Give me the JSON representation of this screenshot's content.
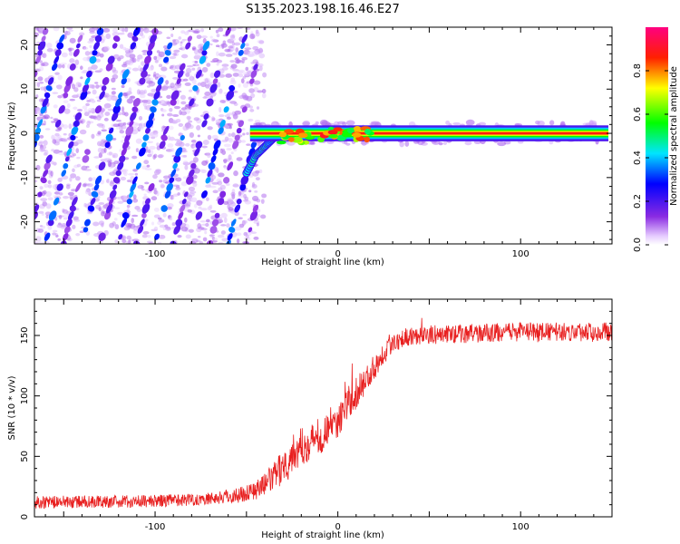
{
  "title": "S135.2023.198.16.46.E27",
  "chart_data": [
    {
      "type": "heatmap",
      "title": "S135.2023.198.16.46.E27",
      "xlabel": "Height of straight line (km)",
      "ylabel": "Frequency (Hz)",
      "xlim": [
        -166,
        150
      ],
      "ylim": [
        -25,
        24
      ],
      "x_ticks": [
        -100,
        0,
        100
      ],
      "y_ticks": [
        -20,
        -10,
        0,
        10,
        20
      ],
      "colorbar": {
        "label": "Normalized spectral amplitude",
        "range": [
          0,
          1
        ],
        "ticks": [
          "0.0",
          "0.2",
          "0.4",
          "0.6",
          "0.8"
        ],
        "colormap": [
          "#ffffff",
          "#8a2be2",
          "#0000ff",
          "#00ffff",
          "#00ff00",
          "#ffff00",
          "#ff0000",
          "#ff00ff"
        ]
      },
      "features": {
        "carrier_line": {
          "x_start": -48,
          "x_end": 148,
          "freq_hz": 0,
          "amplitude": 1.0
        },
        "carrier_descent": [
          [
            -50,
            -9
          ],
          [
            -45,
            -5
          ],
          [
            -40,
            -3
          ],
          [
            -35,
            -1
          ],
          [
            -30,
            0
          ]
        ],
        "diagonal_stripes": {
          "x_range": [
            -166,
            -45
          ],
          "slope_hz_per_km": 1.6,
          "amplitude": 0.3
        }
      }
    },
    {
      "type": "line",
      "xlabel": "Height of straight line (km)",
      "ylabel": "SNR (10 * v/v)",
      "xlim": [
        -166,
        150
      ],
      "ylim": [
        0,
        180
      ],
      "x_ticks": [
        -100,
        0,
        100
      ],
      "y_ticks": [
        0,
        50,
        100,
        150
      ],
      "series": [
        {
          "name": "SNR",
          "color": "#e82020",
          "x": [
            -166,
            -100,
            -70,
            -55,
            -45,
            -40,
            -35,
            -30,
            -25,
            -20,
            -15,
            -10,
            -5,
            0,
            5,
            10,
            15,
            20,
            25,
            30,
            40,
            60,
            80,
            100,
            120,
            150
          ],
          "values": [
            12,
            13,
            15,
            18,
            22,
            27,
            33,
            42,
            52,
            58,
            62,
            66,
            74,
            80,
            92,
            102,
            113,
            124,
            136,
            145,
            150,
            151,
            152,
            153,
            153,
            153
          ],
          "noise_std": [
            4,
            4,
            4,
            5,
            6,
            7,
            9,
            11,
            12,
            12,
            12,
            12,
            12,
            12,
            10,
            10,
            9,
            8,
            8,
            7,
            6,
            6,
            6,
            6,
            6,
            6
          ]
        }
      ]
    }
  ]
}
